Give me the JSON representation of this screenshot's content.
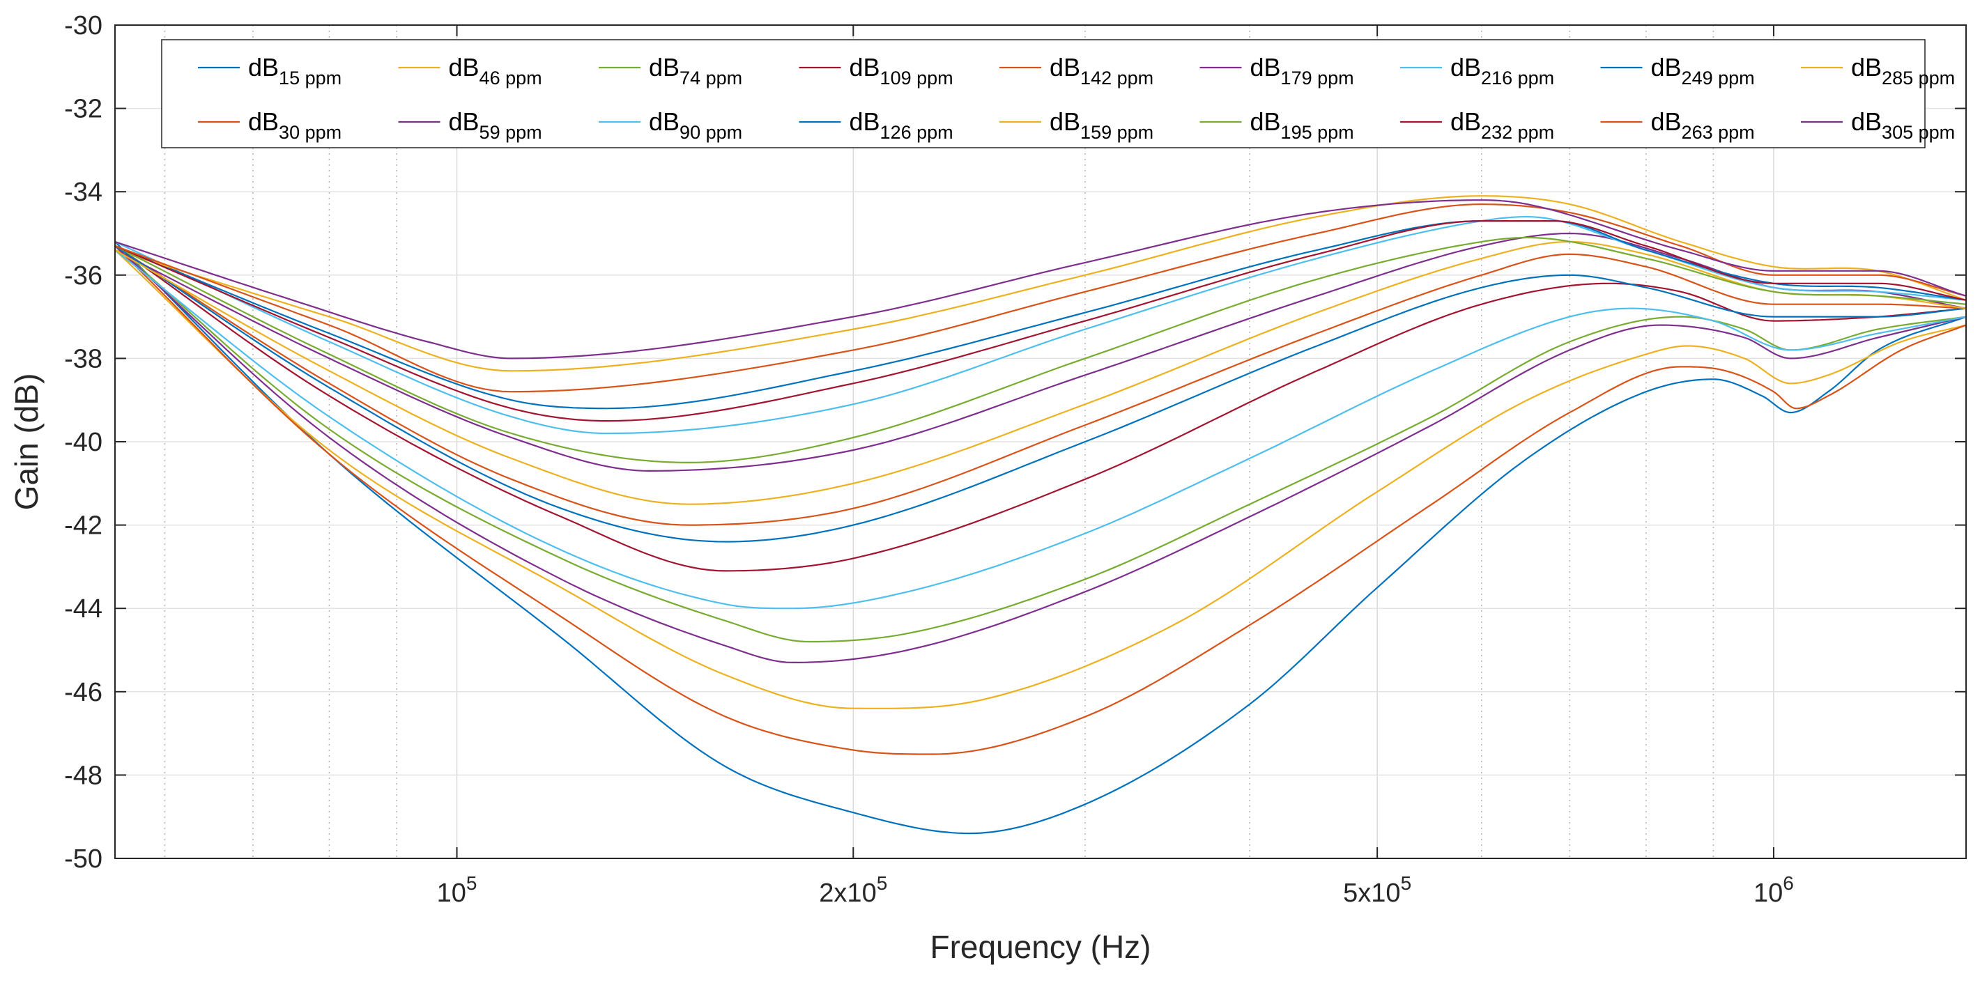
{
  "chart_data": {
    "type": "line",
    "xlabel": "Frequency (Hz)",
    "ylabel": "Gain (dB)",
    "xscale": "log",
    "xlim": [
      55000,
      1400000
    ],
    "ylim": [
      -50,
      -30
    ],
    "grid": true,
    "legend_location": "top",
    "y_ticks": [
      {
        "value": -30,
        "label": "-30"
      },
      {
        "value": -32,
        "label": "-32"
      },
      {
        "value": -34,
        "label": "-34"
      },
      {
        "value": -36,
        "label": "-36"
      },
      {
        "value": -38,
        "label": "-38"
      },
      {
        "value": -40,
        "label": "-40"
      },
      {
        "value": -42,
        "label": "-42"
      },
      {
        "value": -44,
        "label": "-44"
      },
      {
        "value": -46,
        "label": "-46"
      },
      {
        "value": -48,
        "label": "-48"
      },
      {
        "value": -50,
        "label": "-50"
      }
    ],
    "x_ticks": [
      {
        "value": 100000,
        "base": "10",
        "exp": "5",
        "mult": ""
      },
      {
        "value": 200000,
        "base": "10",
        "exp": "5",
        "mult": "2x"
      },
      {
        "value": 500000,
        "base": "10",
        "exp": "5",
        "mult": "5x"
      },
      {
        "value": 1000000,
        "base": "10",
        "exp": "6",
        "mult": ""
      }
    ],
    "series": [
      {
        "name": "dB",
        "sub": "15 ppm",
        "color": "#0072BD",
        "points": [
          [
            55000,
            -35.2
          ],
          [
            80000,
            -40.3
          ],
          [
            120000,
            -44.7
          ],
          [
            160000,
            -47.8
          ],
          [
            200000,
            -48.9
          ],
          [
            245000,
            -49.4
          ],
          [
            300000,
            -48.7
          ],
          [
            400000,
            -46.3
          ],
          [
            500000,
            -43.5
          ],
          [
            650000,
            -40.4
          ],
          [
            800000,
            -38.8
          ],
          [
            900000,
            -38.5
          ],
          [
            980000,
            -38.9
          ],
          [
            1030000,
            -39.3
          ],
          [
            1100000,
            -38.8
          ],
          [
            1200000,
            -37.8
          ],
          [
            1400000,
            -37.0
          ]
        ]
      },
      {
        "name": "dB",
        "sub": "46 ppm",
        "color": "#EDB120",
        "points": [
          [
            55000,
            -35.4
          ],
          [
            80000,
            -40.2
          ],
          [
            120000,
            -43.5
          ],
          [
            160000,
            -45.6
          ],
          [
            200000,
            -46.4
          ],
          [
            250000,
            -46.2
          ],
          [
            350000,
            -44.4
          ],
          [
            500000,
            -41.2
          ],
          [
            650000,
            -39.0
          ],
          [
            800000,
            -37.9
          ],
          [
            860000,
            -37.7
          ],
          [
            950000,
            -38.0
          ],
          [
            1030000,
            -38.6
          ],
          [
            1100000,
            -38.4
          ],
          [
            1250000,
            -37.6
          ],
          [
            1400000,
            -37.2
          ]
        ]
      },
      {
        "name": "dB",
        "sub": "74 ppm",
        "color": "#77AC30",
        "points": [
          [
            55000,
            -35.3
          ],
          [
            80000,
            -39.7
          ],
          [
            120000,
            -42.8
          ],
          [
            160000,
            -44.3
          ],
          [
            185000,
            -44.8
          ],
          [
            220000,
            -44.6
          ],
          [
            300000,
            -43.3
          ],
          [
            400000,
            -41.5
          ],
          [
            550000,
            -39.4
          ],
          [
            700000,
            -37.6
          ],
          [
            850000,
            -37.0
          ],
          [
            950000,
            -37.3
          ],
          [
            1030000,
            -37.8
          ],
          [
            1200000,
            -37.3
          ],
          [
            1400000,
            -37.0
          ]
        ]
      },
      {
        "name": "dB",
        "sub": "109 ppm",
        "color": "#A2142F",
        "points": [
          [
            55000,
            -35.3
          ],
          [
            80000,
            -38.9
          ],
          [
            120000,
            -41.8
          ],
          [
            160000,
            -43.1
          ],
          [
            200000,
            -42.8
          ],
          [
            300000,
            -40.9
          ],
          [
            450000,
            -38.3
          ],
          [
            600000,
            -36.7
          ],
          [
            750000,
            -36.2
          ],
          [
            850000,
            -36.4
          ],
          [
            1000000,
            -37.1
          ],
          [
            1200000,
            -37.0
          ],
          [
            1400000,
            -36.8
          ]
        ]
      },
      {
        "name": "dB",
        "sub": "142 ppm",
        "color": "#D95319",
        "points": [
          [
            55000,
            -35.3
          ],
          [
            80000,
            -38.6
          ],
          [
            110000,
            -40.9
          ],
          [
            150000,
            -42.0
          ],
          [
            200000,
            -41.6
          ],
          [
            300000,
            -39.6
          ],
          [
            450000,
            -37.4
          ],
          [
            600000,
            -36.0
          ],
          [
            700000,
            -35.5
          ],
          [
            800000,
            -35.8
          ],
          [
            1000000,
            -36.7
          ],
          [
            1200000,
            -36.7
          ],
          [
            1400000,
            -36.8
          ]
        ]
      },
      {
        "name": "dB",
        "sub": "179 ppm",
        "color": "#7E2F8E",
        "points": [
          [
            55000,
            -35.4
          ],
          [
            80000,
            -38.0
          ],
          [
            110000,
            -39.9
          ],
          [
            140000,
            -40.7
          ],
          [
            200000,
            -40.2
          ],
          [
            300000,
            -38.4
          ],
          [
            450000,
            -36.5
          ],
          [
            600000,
            -35.3
          ],
          [
            700000,
            -35.0
          ],
          [
            850000,
            -35.6
          ],
          [
            1000000,
            -36.3
          ],
          [
            1200000,
            -36.4
          ],
          [
            1400000,
            -36.8
          ]
        ]
      },
      {
        "name": "dB",
        "sub": "216 ppm",
        "color": "#4DBEEE",
        "points": [
          [
            55000,
            -35.2
          ],
          [
            80000,
            -37.6
          ],
          [
            110000,
            -39.4
          ],
          [
            130000,
            -39.8
          ],
          [
            200000,
            -39.1
          ],
          [
            300000,
            -37.3
          ],
          [
            450000,
            -35.6
          ],
          [
            600000,
            -34.7
          ],
          [
            650000,
            -34.6
          ],
          [
            800000,
            -35.4
          ],
          [
            1000000,
            -36.3
          ],
          [
            1200000,
            -36.4
          ],
          [
            1400000,
            -36.6
          ]
        ]
      },
      {
        "name": "dB",
        "sub": "249 ppm",
        "color": "#0072BD",
        "points": [
          [
            55000,
            -35.3
          ],
          [
            80000,
            -37.4
          ],
          [
            110000,
            -39.0
          ],
          [
            130000,
            -39.2
          ],
          [
            200000,
            -38.3
          ],
          [
            300000,
            -36.9
          ],
          [
            450000,
            -35.4
          ],
          [
            600000,
            -34.7
          ],
          [
            680000,
            -34.7
          ],
          [
            800000,
            -35.4
          ],
          [
            1000000,
            -36.2
          ],
          [
            1200000,
            -36.3
          ],
          [
            1400000,
            -36.6
          ]
        ]
      },
      {
        "name": "dB",
        "sub": "285 ppm",
        "color": "#EDB120",
        "points": [
          [
            55000,
            -35.4
          ],
          [
            80000,
            -37.0
          ],
          [
            110000,
            -38.3
          ],
          [
            200000,
            -37.3
          ],
          [
            300000,
            -36.0
          ],
          [
            450000,
            -34.6
          ],
          [
            600000,
            -34.1
          ],
          [
            700000,
            -34.3
          ],
          [
            850000,
            -35.2
          ],
          [
            1000000,
            -35.8
          ],
          [
            1200000,
            -35.9
          ],
          [
            1400000,
            -36.6
          ]
        ]
      },
      {
        "name": "dB",
        "sub": "30 ppm",
        "color": "#D95319",
        "points": [
          [
            55000,
            -35.3
          ],
          [
            80000,
            -40.3
          ],
          [
            120000,
            -44.2
          ],
          [
            160000,
            -46.6
          ],
          [
            200000,
            -47.4
          ],
          [
            230000,
            -47.5
          ],
          [
            300000,
            -46.6
          ],
          [
            400000,
            -44.4
          ],
          [
            550000,
            -41.5
          ],
          [
            700000,
            -39.3
          ],
          [
            850000,
            -38.2
          ],
          [
            920000,
            -38.3
          ],
          [
            1000000,
            -38.8
          ],
          [
            1040000,
            -39.2
          ],
          [
            1100000,
            -38.9
          ],
          [
            1250000,
            -37.8
          ],
          [
            1400000,
            -37.2
          ]
        ]
      },
      {
        "name": "dB",
        "sub": "59 ppm",
        "color": "#7E2F8E",
        "points": [
          [
            55000,
            -35.3
          ],
          [
            80000,
            -39.9
          ],
          [
            120000,
            -43.3
          ],
          [
            160000,
            -44.9
          ],
          [
            180000,
            -45.3
          ],
          [
            220000,
            -45.0
          ],
          [
            300000,
            -43.6
          ],
          [
            400000,
            -41.8
          ],
          [
            550000,
            -39.6
          ],
          [
            700000,
            -37.8
          ],
          [
            820000,
            -37.2
          ],
          [
            950000,
            -37.5
          ],
          [
            1030000,
            -38.0
          ],
          [
            1200000,
            -37.5
          ],
          [
            1400000,
            -37.0
          ]
        ]
      },
      {
        "name": "dB",
        "sub": "90 ppm",
        "color": "#4DBEEE",
        "points": [
          [
            55000,
            -35.4
          ],
          [
            80000,
            -39.4
          ],
          [
            120000,
            -42.6
          ],
          [
            160000,
            -43.9
          ],
          [
            180000,
            -44.0
          ],
          [
            220000,
            -43.6
          ],
          [
            300000,
            -42.2
          ],
          [
            400000,
            -40.4
          ],
          [
            550000,
            -38.3
          ],
          [
            700000,
            -37.0
          ],
          [
            780000,
            -36.8
          ],
          [
            900000,
            -37.1
          ],
          [
            1030000,
            -37.8
          ],
          [
            1200000,
            -37.4
          ],
          [
            1400000,
            -37.0
          ]
        ]
      },
      {
        "name": "dB",
        "sub": "126 ppm",
        "color": "#0072BD",
        "points": [
          [
            55000,
            -35.3
          ],
          [
            80000,
            -38.7
          ],
          [
            120000,
            -41.6
          ],
          [
            160000,
            -42.4
          ],
          [
            200000,
            -42.0
          ],
          [
            300000,
            -40.0
          ],
          [
            450000,
            -37.7
          ],
          [
            600000,
            -36.3
          ],
          [
            700000,
            -36.0
          ],
          [
            800000,
            -36.3
          ],
          [
            1000000,
            -37.0
          ],
          [
            1200000,
            -37.0
          ],
          [
            1400000,
            -36.8
          ]
        ]
      },
      {
        "name": "dB",
        "sub": "159 ppm",
        "color": "#EDB120",
        "points": [
          [
            55000,
            -35.4
          ],
          [
            80000,
            -38.3
          ],
          [
            110000,
            -40.4
          ],
          [
            150000,
            -41.5
          ],
          [
            200000,
            -41.0
          ],
          [
            300000,
            -39.1
          ],
          [
            450000,
            -36.9
          ],
          [
            600000,
            -35.6
          ],
          [
            700000,
            -35.2
          ],
          [
            800000,
            -35.5
          ],
          [
            1000000,
            -36.4
          ],
          [
            1200000,
            -36.5
          ],
          [
            1400000,
            -36.8
          ]
        ]
      },
      {
        "name": "dB",
        "sub": "195 ppm",
        "color": "#77AC30",
        "points": [
          [
            55000,
            -35.3
          ],
          [
            80000,
            -37.9
          ],
          [
            110000,
            -39.8
          ],
          [
            150000,
            -40.5
          ],
          [
            200000,
            -39.9
          ],
          [
            300000,
            -38.0
          ],
          [
            450000,
            -36.1
          ],
          [
            600000,
            -35.2
          ],
          [
            650000,
            -35.1
          ],
          [
            800000,
            -35.6
          ],
          [
            1000000,
            -36.4
          ],
          [
            1200000,
            -36.5
          ],
          [
            1400000,
            -36.7
          ]
        ]
      },
      {
        "name": "dB",
        "sub": "232 ppm",
        "color": "#A2142F",
        "points": [
          [
            55000,
            -35.3
          ],
          [
            80000,
            -37.5
          ],
          [
            110000,
            -39.2
          ],
          [
            130000,
            -39.5
          ],
          [
            200000,
            -38.6
          ],
          [
            300000,
            -37.1
          ],
          [
            450000,
            -35.5
          ],
          [
            600000,
            -34.7
          ],
          [
            680000,
            -34.7
          ],
          [
            800000,
            -35.3
          ],
          [
            1000000,
            -36.2
          ],
          [
            1200000,
            -36.2
          ],
          [
            1400000,
            -36.6
          ]
        ]
      },
      {
        "name": "dB",
        "sub": "263 ppm",
        "color": "#D95319",
        "points": [
          [
            55000,
            -35.3
          ],
          [
            80000,
            -37.2
          ],
          [
            110000,
            -38.8
          ],
          [
            200000,
            -37.8
          ],
          [
            300000,
            -36.4
          ],
          [
            450000,
            -35.0
          ],
          [
            600000,
            -34.3
          ],
          [
            700000,
            -34.5
          ],
          [
            850000,
            -35.3
          ],
          [
            1000000,
            -36.0
          ],
          [
            1200000,
            -36.0
          ],
          [
            1400000,
            -36.5
          ]
        ]
      },
      {
        "name": "dB",
        "sub": "305 ppm",
        "color": "#7E2F8E",
        "points": [
          [
            55000,
            -35.2
          ],
          [
            75000,
            -36.6
          ],
          [
            95000,
            -37.6
          ],
          [
            110000,
            -38.0
          ],
          [
            200000,
            -37.0
          ],
          [
            300000,
            -35.7
          ],
          [
            450000,
            -34.5
          ],
          [
            600000,
            -34.2
          ],
          [
            650000,
            -34.3
          ],
          [
            850000,
            -35.4
          ],
          [
            1000000,
            -35.9
          ],
          [
            1200000,
            -35.9
          ],
          [
            1400000,
            -36.5
          ]
        ]
      }
    ]
  }
}
